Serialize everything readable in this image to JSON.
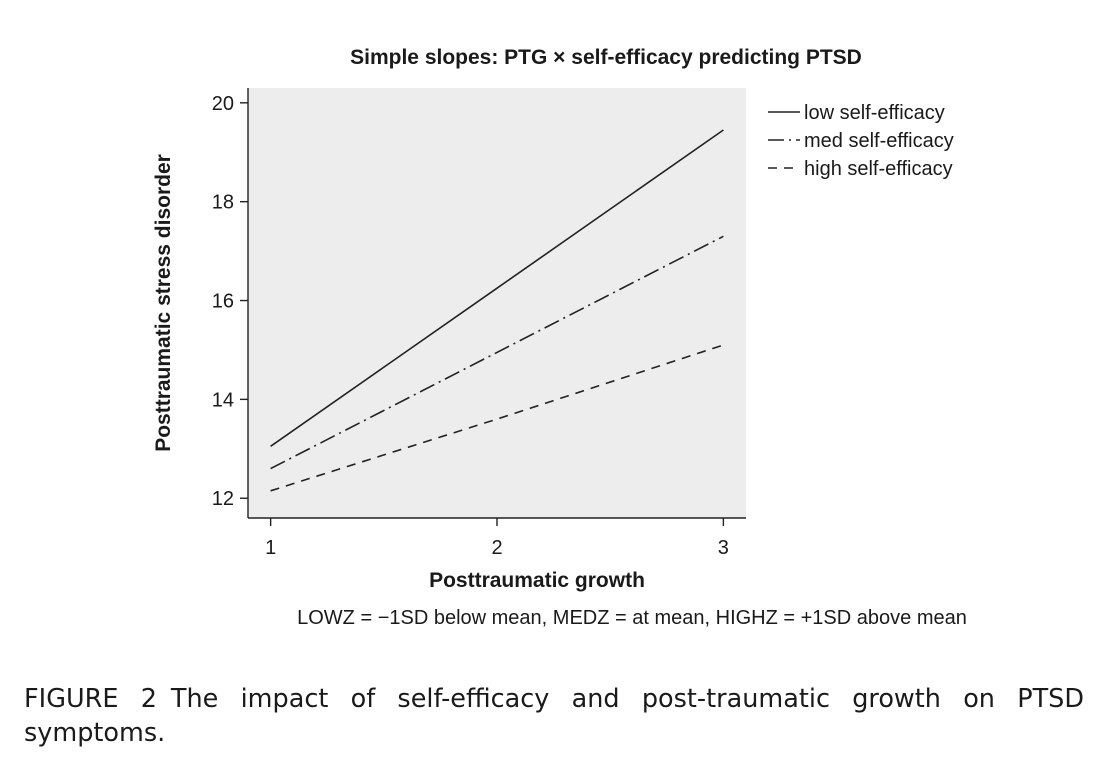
{
  "chart_data": {
    "type": "line",
    "title": "Simple slopes: PTG × self-efficacy predicting PTSD",
    "xlabel": "Posttraumatic growth",
    "ylabel": "Posttraumatic stress disorder",
    "x": [
      1,
      2,
      3
    ],
    "xlim": [
      0.9,
      3.1
    ],
    "ylim": [
      11.6,
      20.3
    ],
    "xticks": [
      1,
      2,
      3
    ],
    "yticks": [
      12,
      14,
      16,
      18,
      20
    ],
    "legend_position": "right",
    "series": [
      {
        "name": "low self-efficacy",
        "style": "solid",
        "values": [
          13.05,
          16.25,
          19.45
        ]
      },
      {
        "name": "med self-efficacy",
        "style": "dash-dot",
        "values": [
          12.6,
          14.95,
          17.3
        ]
      },
      {
        "name": "high self-efficacy",
        "style": "dashed",
        "values": [
          12.15,
          13.6,
          15.1
        ]
      }
    ],
    "note": "LOWZ = −1SD below mean, MEDZ = at mean, HIGHZ = +1SD above mean",
    "colors": {
      "plot_background": "#ededed",
      "line": "#222222",
      "axis": "#222222"
    }
  },
  "caption": {
    "label": "FIGURE 2",
    "text": "The impact of self-efficacy and post-traumatic growth on PTSD symptoms."
  }
}
